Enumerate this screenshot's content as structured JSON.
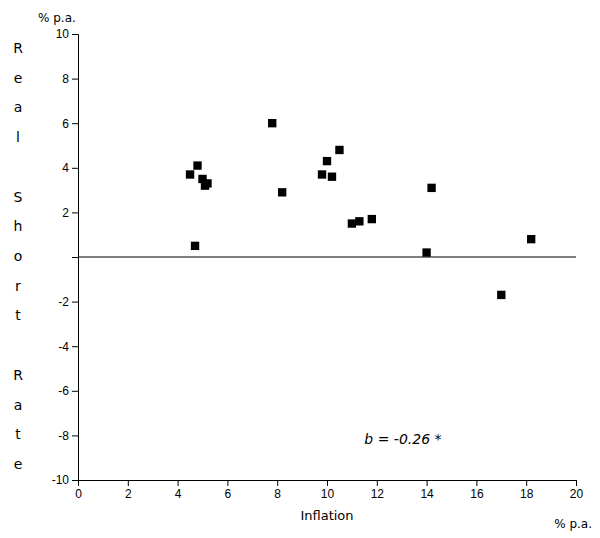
{
  "chart_data": {
    "type": "scatter",
    "x": [
      4.5,
      4.8,
      5.0,
      5.1,
      5.2,
      4.7,
      7.8,
      8.2,
      9.8,
      10.0,
      10.2,
      10.5,
      11.0,
      11.3,
      11.8,
      14.0,
      14.2,
      17.0,
      18.2
    ],
    "values": [
      3.7,
      4.1,
      3.5,
      3.2,
      3.3,
      0.5,
      6.0,
      2.9,
      3.7,
      4.3,
      3.6,
      4.8,
      1.5,
      1.6,
      1.7,
      0.2,
      3.1,
      -1.7,
      0.8
    ],
    "color": "#000000",
    "marker": "square",
    "xlabel": "Inflation",
    "xunit": "% p.a.",
    "ylabel": "Real Short Rate",
    "yunit": "% p.a.",
    "annotations": [
      {
        "text": "b  =  -0.26  *",
        "x": 11.5,
        "y": -8.2
      }
    ],
    "hline": 0,
    "xlim": [
      0,
      20
    ],
    "ylim": [
      -10,
      10
    ],
    "xticks": [
      0,
      2,
      4,
      6,
      8,
      10,
      12,
      14,
      16,
      18,
      20
    ],
    "yticks": [
      -10,
      -8,
      -6,
      -4,
      -2,
      {
        "value": 0,
        "label": null
      },
      2,
      4,
      6,
      8,
      10
    ],
    "grid": false
  }
}
